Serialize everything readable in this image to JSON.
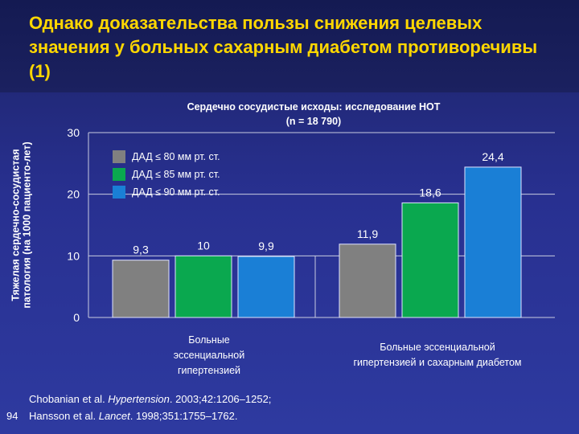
{
  "slide": {
    "title": "Однако доказательства пользы снижения целевых значения у больных сахарным диабетом противоречивы (1)",
    "page_number": "94"
  },
  "chart_data": {
    "type": "bar",
    "title": "Сердечно сосудистые исходы: исследование HOT",
    "subtitle": "(n = 18 790)",
    "ylabel": "Тяжелая сердечно-сосудистая патология (на 1000 пациенто-лет)",
    "ylim": [
      0,
      30
    ],
    "yticks": [
      0,
      10,
      20,
      30
    ],
    "categories": [
      "Больные эссенциальной гипертензией",
      "Больные эссенциальной гипертензией и сахарным диабетом"
    ],
    "series": [
      {
        "name": "ДАД ≤ 80 мм рт. ст.",
        "values": [
          9.3,
          11.9
        ],
        "labels": [
          "9,3",
          "11,9"
        ],
        "color": "#808080"
      },
      {
        "name": "ДАД ≤ 85 мм рт. ст.",
        "values": [
          10,
          18.6
        ],
        "labels": [
          "10",
          "18,6"
        ],
        "color": "#0aa84f"
      },
      {
        "name": "ДАД ≤ 90 мм рт. ст.",
        "values": [
          9.9,
          24.4
        ],
        "labels": [
          "9,9",
          "24,4"
        ],
        "color": "#1a7fd6"
      }
    ],
    "grid": true,
    "legend_position": "top-left"
  },
  "references": [
    {
      "pre": "Chobanian et al. ",
      "journal": "Hypertension",
      "post": ". 2003;42:1206–1252;"
    },
    {
      "pre": "Hansson et al. ",
      "journal": "Lancet",
      "post": ". 1998;351:1755–1762."
    }
  ]
}
